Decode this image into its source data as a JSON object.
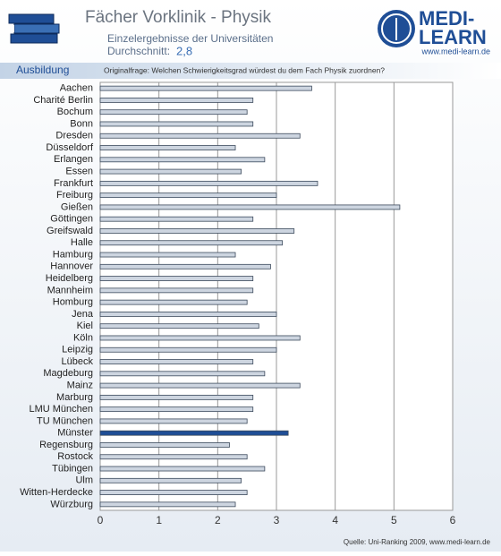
{
  "header": {
    "title": "Fächer Vorklinik - Physik",
    "subtitle": "Einzelergebnisse der Universitäten",
    "average_label": "Durchschnitt:",
    "average_value": "2,8",
    "logo_top": "MEDI-",
    "logo_bottom": "LEARN",
    "logo_url": "www.medi-learn.de",
    "section": "Ausbildung",
    "question": "Originalfrage: Welchen Schwierigkeitsgrad würdest du dem Fach Physik zuordnen?"
  },
  "footer": {
    "source": "Quelle: Uni-Ranking 2009, www.medi-learn.de"
  },
  "chart_data": {
    "type": "hbar",
    "categories": [
      "Aachen",
      "Charité Berlin",
      "Bochum",
      "Bonn",
      "Dresden",
      "Düsseldorf",
      "Erlangen",
      "Essen",
      "Frankfurt",
      "Freiburg",
      "Gießen",
      "Göttingen",
      "Greifswald",
      "Halle",
      "Hamburg",
      "Hannover",
      "Heidelberg",
      "Mannheim",
      "Homburg",
      "Jena",
      "Kiel",
      "Köln",
      "Leipzig",
      "Lübeck",
      "Magdeburg",
      "Mainz",
      "Marburg",
      "LMU München",
      "TU München",
      "Münster",
      "Regensburg",
      "Rostock",
      "Tübingen",
      "Ulm",
      "Witten-Herdecke",
      "Würzburg"
    ],
    "values": [
      3.6,
      2.6,
      2.5,
      2.6,
      3.4,
      2.3,
      2.8,
      2.4,
      3.7,
      3.0,
      5.1,
      2.6,
      3.3,
      3.1,
      2.3,
      2.9,
      2.6,
      2.6,
      2.5,
      3.0,
      2.7,
      3.4,
      3.0,
      2.6,
      2.8,
      3.4,
      2.6,
      2.6,
      2.5,
      3.2,
      2.2,
      2.5,
      2.8,
      2.4,
      2.5,
      2.3
    ],
    "colors": [
      "#cdd5e0",
      "#cdd5e0",
      "#cdd5e0",
      "#cdd5e0",
      "#cdd5e0",
      "#cdd5e0",
      "#cdd5e0",
      "#cdd5e0",
      "#cdd5e0",
      "#cdd5e0",
      "#cdd5e0",
      "#cdd5e0",
      "#cdd5e0",
      "#cdd5e0",
      "#cdd5e0",
      "#cdd5e0",
      "#cdd5e0",
      "#cdd5e0",
      "#cdd5e0",
      "#cdd5e0",
      "#cdd5e0",
      "#cdd5e0",
      "#cdd5e0",
      "#cdd5e0",
      "#cdd5e0",
      "#cdd5e0",
      "#cdd5e0",
      "#cdd5e0",
      "#cdd5e0",
      "#1f4e96",
      "#cdd5e0",
      "#cdd5e0",
      "#cdd5e0",
      "#cdd5e0",
      "#cdd5e0",
      "#cdd5e0"
    ],
    "xlim": [
      0,
      6
    ],
    "xticks": [
      0,
      1,
      2,
      3,
      4,
      5,
      6
    ],
    "grid": true
  }
}
